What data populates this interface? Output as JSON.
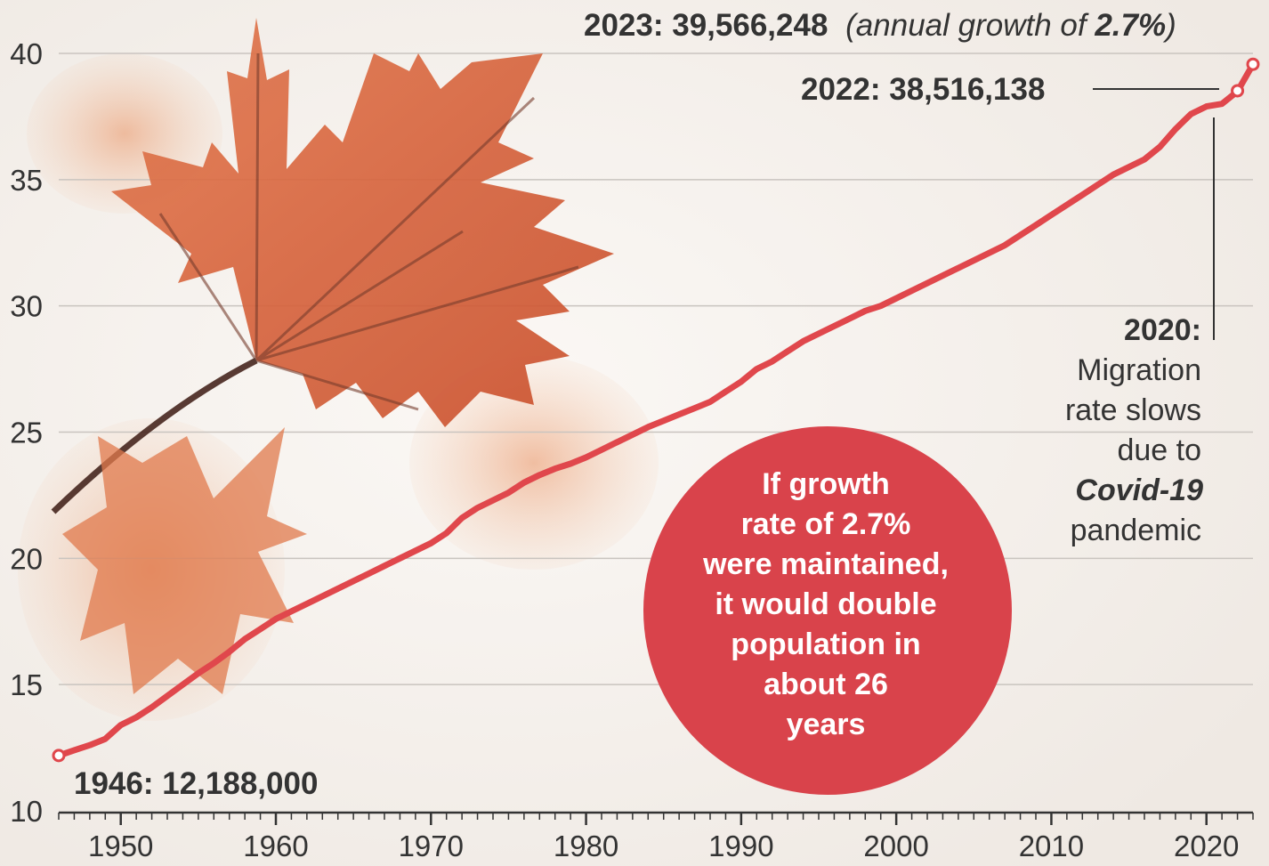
{
  "chart_data": {
    "type": "line",
    "title": "",
    "xlabel": "",
    "ylabel": "",
    "xlim": [
      1946,
      2023
    ],
    "ylim": [
      10,
      40
    ],
    "grid": true,
    "y_ticks": [
      10,
      15,
      20,
      25,
      30,
      35,
      40
    ],
    "x_ticks": [
      1950,
      1960,
      1970,
      1980,
      1990,
      2000,
      2010,
      2020
    ],
    "series": [
      {
        "color": "#e0474c",
        "x": [
          1946,
          1947,
          1948,
          1949,
          1950,
          1951,
          1952,
          1953,
          1954,
          1955,
          1956,
          1957,
          1958,
          1959,
          1960,
          1961,
          1962,
          1963,
          1964,
          1965,
          1966,
          1967,
          1968,
          1969,
          1970,
          1971,
          1972,
          1973,
          1974,
          1975,
          1976,
          1977,
          1978,
          1979,
          1980,
          1981,
          1982,
          1983,
          1984,
          1985,
          1986,
          1987,
          1988,
          1989,
          1990,
          1991,
          1992,
          1993,
          1994,
          1995,
          1996,
          1997,
          1998,
          1999,
          2000,
          2001,
          2002,
          2003,
          2004,
          2005,
          2006,
          2007,
          2008,
          2009,
          2010,
          2011,
          2012,
          2013,
          2014,
          2015,
          2016,
          2017,
          2018,
          2019,
          2020,
          2021,
          2022,
          2023
        ],
        "y": [
          12.19,
          12.4,
          12.6,
          12.85,
          13.4,
          13.7,
          14.1,
          14.55,
          15.0,
          15.45,
          15.85,
          16.3,
          16.8,
          17.2,
          17.6,
          17.9,
          18.2,
          18.5,
          18.8,
          19.1,
          19.4,
          19.7,
          20.0,
          20.3,
          20.6,
          21.0,
          21.6,
          22.0,
          22.3,
          22.6,
          23.0,
          23.3,
          23.55,
          23.75,
          24.0,
          24.3,
          24.6,
          24.9,
          25.2,
          25.45,
          25.7,
          25.95,
          26.2,
          26.6,
          27.0,
          27.5,
          27.8,
          28.2,
          28.6,
          28.9,
          29.2,
          29.5,
          29.8,
          30.0,
          30.3,
          30.6,
          30.9,
          31.2,
          31.5,
          31.8,
          32.1,
          32.4,
          32.8,
          33.2,
          33.6,
          34.0,
          34.4,
          34.8,
          35.2,
          35.5,
          35.8,
          36.3,
          37.0,
          37.6,
          37.9,
          38.0,
          38.5,
          39.57
        ],
        "markers": [
          {
            "x": 1946,
            "y": 12.19
          },
          {
            "x": 2022,
            "y": 38.52
          },
          {
            "x": 2023,
            "y": 39.57
          }
        ]
      }
    ],
    "annotations": {
      "start": {
        "label": "1946: 12,188,000"
      },
      "y2022": {
        "label": "2022: 38,516,138"
      },
      "y2023": {
        "label": "2023: 39,566,248",
        "note_prefix": "(annual growth of ",
        "note_value": "2.7%",
        "note_suffix": ")"
      },
      "y2020": {
        "label": "2020:",
        "lines": [
          "Migration",
          "rate slows",
          "due to"
        ],
        "emphasis": "Covid-19",
        "last": "pandemic"
      },
      "bubble": {
        "color": "#d9434b",
        "lines": [
          "If growth",
          "rate of 2.7%",
          "were maintained,",
          "it would double",
          "population in",
          "about 26",
          "years"
        ]
      }
    }
  }
}
